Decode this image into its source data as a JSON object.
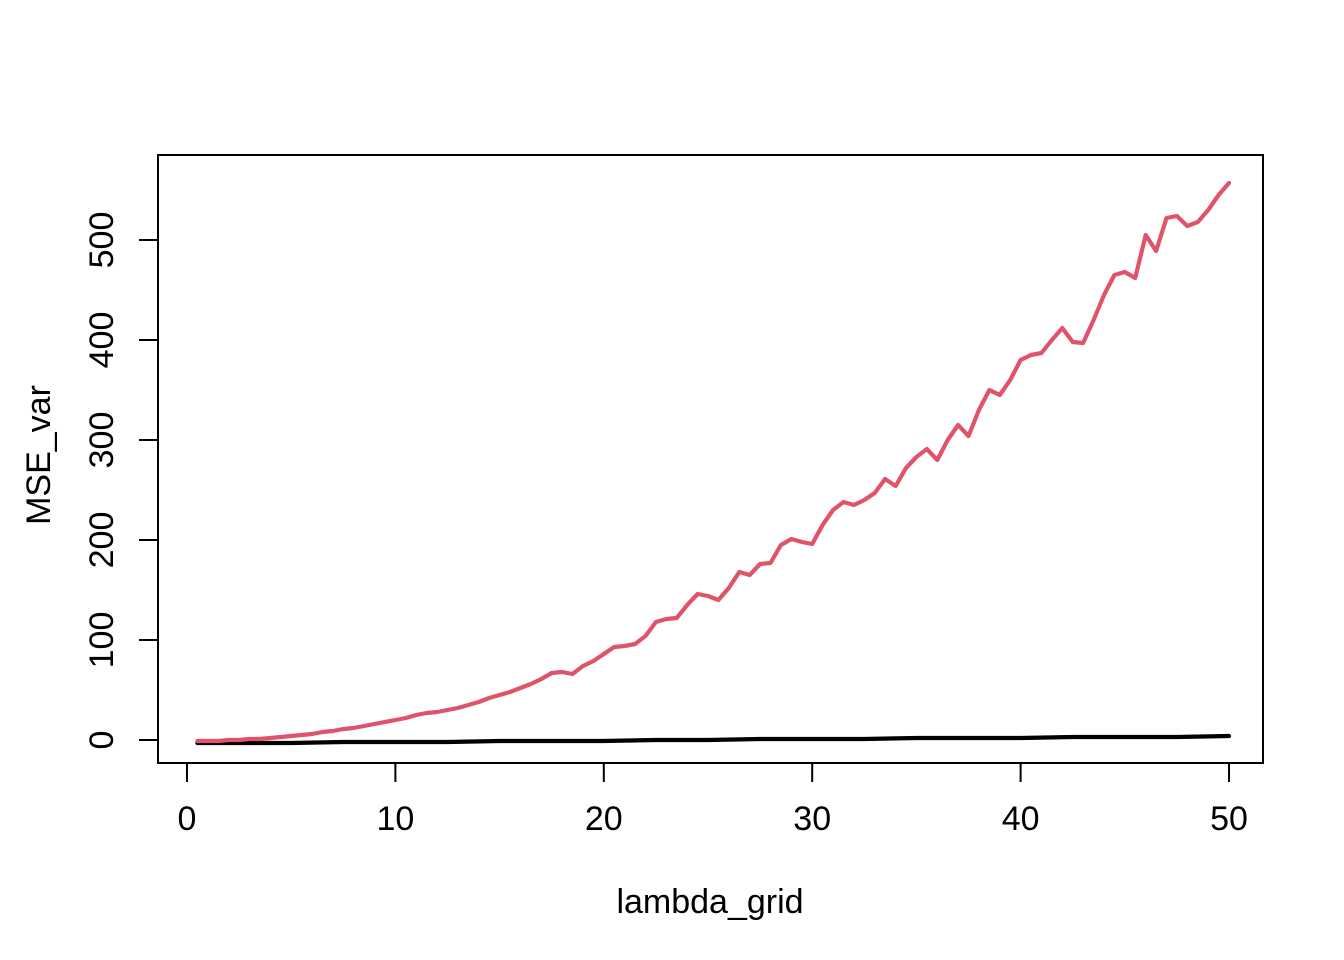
{
  "figure": {
    "background": "#ffffff",
    "axis_color": "#000000"
  },
  "chart_data": {
    "type": "line",
    "title": "",
    "xlabel": "lambda_grid",
    "ylabel": "MSE_var",
    "x_ticks": [
      0,
      10,
      20,
      30,
      40,
      50
    ],
    "y_ticks": [
      0,
      100,
      200,
      300,
      400,
      500
    ],
    "xlim": [
      -1.39,
      51.63
    ],
    "ylim": [
      -23,
      585
    ],
    "grid": false,
    "legend_position": null,
    "series": [
      {
        "name": "baseline_black_line",
        "color": "#000000",
        "linewidth": 4.2,
        "x": [
          0.5,
          2.5,
          5,
          7.5,
          10,
          12.5,
          15,
          17.5,
          20,
          22.5,
          25,
          27.5,
          30,
          32.5,
          35,
          37.5,
          40,
          42.5,
          45,
          47.5,
          50
        ],
        "y": [
          -3,
          -3,
          -3,
          -2,
          -2,
          -2,
          -1,
          -1,
          -1,
          0,
          0,
          1,
          1,
          1,
          2,
          2,
          2,
          3,
          3,
          3,
          4
        ]
      },
      {
        "name": "MSE_var_red_line",
        "color": "#DF536B",
        "linewidth": 4.2,
        "x": [
          0.5,
          1,
          1.5,
          2,
          2.5,
          3,
          3.5,
          4,
          4.5,
          5,
          5.5,
          6,
          6.5,
          7,
          7.5,
          8,
          8.5,
          9,
          9.5,
          10,
          10.5,
          11,
          11.5,
          12,
          12.5,
          13,
          13.5,
          14,
          14.5,
          15,
          15.5,
          16,
          16.5,
          17,
          17.5,
          18,
          18.5,
          19,
          19.5,
          20,
          20.5,
          21,
          21.5,
          22,
          22.5,
          23,
          23.5,
          24,
          24.5,
          25,
          25.5,
          26,
          26.5,
          27,
          27.5,
          28,
          28.5,
          29,
          29.5,
          30,
          30.5,
          31,
          31.5,
          32,
          32.5,
          33,
          33.5,
          34,
          34.5,
          35,
          35.5,
          36,
          36.5,
          37,
          37.5,
          38,
          38.5,
          39,
          39.5,
          40,
          40.5,
          41,
          41.5,
          42,
          42.5,
          43,
          43.5,
          44,
          44.5,
          45,
          45.5,
          46,
          46.5,
          47,
          47.5,
          48,
          48.5,
          49,
          49.5,
          50
        ],
        "y": [
          -1,
          -1,
          -1,
          0,
          0,
          1,
          1,
          2,
          3,
          4,
          5,
          6,
          8,
          9,
          11,
          12,
          14,
          16,
          18,
          20,
          22,
          25,
          27,
          28,
          30,
          32,
          35,
          38,
          42,
          45,
          48,
          52,
          56,
          61,
          67,
          68,
          66,
          74,
          79,
          86,
          93,
          94,
          96,
          104,
          118,
          121,
          122,
          135,
          146,
          144,
          140,
          152,
          168,
          165,
          176,
          177,
          195,
          201,
          198,
          196,
          215,
          230,
          238,
          235,
          240,
          247,
          261,
          254,
          272,
          283,
          291,
          280,
          300,
          315,
          304,
          330,
          350,
          345,
          360,
          380,
          385,
          387,
          400,
          412,
          398,
          397,
          420,
          445,
          465,
          468,
          462,
          505,
          489,
          522,
          524,
          514,
          518,
          530,
          545,
          557
        ]
      }
    ]
  }
}
